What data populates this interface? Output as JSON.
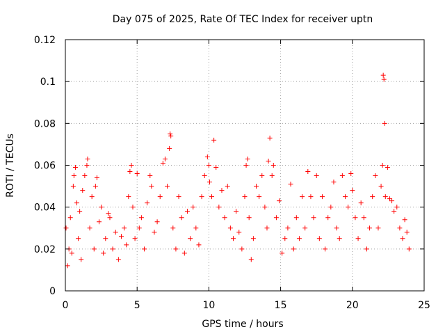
{
  "chart_data": {
    "type": "scatter",
    "title": "Day 075 of 2025, Rate Of TEC Index for receiver uptn",
    "xlabel": "GPS time / hours",
    "ylabel": "ROTI / TECUs",
    "xlim": [
      0,
      25
    ],
    "ylim": [
      0,
      0.12
    ],
    "x_ticks": [
      0,
      5,
      10,
      15,
      20,
      25
    ],
    "x_tick_labels": [
      "0",
      "5",
      "10",
      "15",
      "20",
      "25"
    ],
    "y_ticks": [
      0,
      0.02,
      0.04,
      0.06,
      0.08,
      0.1,
      0.12
    ],
    "y_tick_labels": [
      "0",
      "0.02",
      "0.04",
      "0.06",
      "0.08",
      "0.1",
      "0.12"
    ],
    "grid": true,
    "marker": "+",
    "color": "#ff0000",
    "series": [
      {
        "name": "ROTI",
        "points": [
          [
            0.05,
            0.03
          ],
          [
            0.15,
            0.012
          ],
          [
            0.25,
            0.02
          ],
          [
            0.35,
            0.035
          ],
          [
            0.45,
            0.018
          ],
          [
            0.55,
            0.05
          ],
          [
            0.6,
            0.055
          ],
          [
            0.7,
            0.059
          ],
          [
            0.8,
            0.042
          ],
          [
            0.9,
            0.025
          ],
          [
            1.0,
            0.038
          ],
          [
            1.1,
            0.015
          ],
          [
            1.2,
            0.048
          ],
          [
            1.35,
            0.055
          ],
          [
            1.5,
            0.06
          ],
          [
            1.55,
            0.063
          ],
          [
            1.7,
            0.03
          ],
          [
            1.85,
            0.045
          ],
          [
            2.0,
            0.02
          ],
          [
            2.1,
            0.05
          ],
          [
            2.2,
            0.054
          ],
          [
            2.35,
            0.033
          ],
          [
            2.5,
            0.04
          ],
          [
            2.65,
            0.018
          ],
          [
            2.8,
            0.025
          ],
          [
            3.0,
            0.037
          ],
          [
            3.1,
            0.035
          ],
          [
            3.3,
            0.02
          ],
          [
            3.5,
            0.028
          ],
          [
            3.7,
            0.015
          ],
          [
            3.9,
            0.026
          ],
          [
            4.1,
            0.03
          ],
          [
            4.25,
            0.022
          ],
          [
            4.4,
            0.045
          ],
          [
            4.5,
            0.057
          ],
          [
            4.6,
            0.06
          ],
          [
            4.7,
            0.04
          ],
          [
            4.85,
            0.025
          ],
          [
            5.0,
            0.056
          ],
          [
            5.15,
            0.03
          ],
          [
            5.3,
            0.035
          ],
          [
            5.5,
            0.02
          ],
          [
            5.7,
            0.042
          ],
          [
            5.9,
            0.055
          ],
          [
            6.0,
            0.05
          ],
          [
            6.2,
            0.028
          ],
          [
            6.4,
            0.033
          ],
          [
            6.6,
            0.045
          ],
          [
            6.8,
            0.061
          ],
          [
            6.95,
            0.063
          ],
          [
            7.1,
            0.05
          ],
          [
            7.25,
            0.068
          ],
          [
            7.3,
            0.075
          ],
          [
            7.35,
            0.074
          ],
          [
            7.5,
            0.03
          ],
          [
            7.7,
            0.02
          ],
          [
            7.9,
            0.045
          ],
          [
            8.1,
            0.035
          ],
          [
            8.3,
            0.018
          ],
          [
            8.5,
            0.038
          ],
          [
            8.7,
            0.025
          ],
          [
            8.9,
            0.04
          ],
          [
            9.1,
            0.03
          ],
          [
            9.3,
            0.022
          ],
          [
            9.5,
            0.045
          ],
          [
            9.7,
            0.055
          ],
          [
            9.9,
            0.064
          ],
          [
            10.0,
            0.06
          ],
          [
            10.05,
            0.052
          ],
          [
            10.2,
            0.045
          ],
          [
            10.35,
            0.072
          ],
          [
            10.5,
            0.059
          ],
          [
            10.7,
            0.04
          ],
          [
            10.9,
            0.048
          ],
          [
            11.1,
            0.035
          ],
          [
            11.3,
            0.05
          ],
          [
            11.5,
            0.03
          ],
          [
            11.7,
            0.025
          ],
          [
            11.9,
            0.038
          ],
          [
            12.1,
            0.028
          ],
          [
            12.3,
            0.02
          ],
          [
            12.5,
            0.045
          ],
          [
            12.6,
            0.06
          ],
          [
            12.7,
            0.063
          ],
          [
            12.8,
            0.035
          ],
          [
            12.95,
            0.015
          ],
          [
            13.1,
            0.025
          ],
          [
            13.3,
            0.05
          ],
          [
            13.5,
            0.045
          ],
          [
            13.7,
            0.055
          ],
          [
            13.9,
            0.04
          ],
          [
            14.05,
            0.03
          ],
          [
            14.15,
            0.062
          ],
          [
            14.25,
            0.073
          ],
          [
            14.4,
            0.055
          ],
          [
            14.5,
            0.06
          ],
          [
            14.7,
            0.035
          ],
          [
            14.9,
            0.043
          ],
          [
            15.1,
            0.018
          ],
          [
            15.3,
            0.025
          ],
          [
            15.5,
            0.03
          ],
          [
            15.7,
            0.051
          ],
          [
            15.9,
            0.02
          ],
          [
            16.1,
            0.035
          ],
          [
            16.3,
            0.025
          ],
          [
            16.5,
            0.045
          ],
          [
            16.7,
            0.03
          ],
          [
            16.9,
            0.057
          ],
          [
            17.1,
            0.045
          ],
          [
            17.3,
            0.035
          ],
          [
            17.5,
            0.055
          ],
          [
            17.7,
            0.025
          ],
          [
            17.9,
            0.045
          ],
          [
            18.1,
            0.02
          ],
          [
            18.3,
            0.035
          ],
          [
            18.5,
            0.04
          ],
          [
            18.7,
            0.052
          ],
          [
            18.9,
            0.03
          ],
          [
            19.1,
            0.025
          ],
          [
            19.3,
            0.055
          ],
          [
            19.5,
            0.045
          ],
          [
            19.7,
            0.04
          ],
          [
            19.9,
            0.056
          ],
          [
            20.0,
            0.048
          ],
          [
            20.2,
            0.035
          ],
          [
            20.4,
            0.025
          ],
          [
            20.6,
            0.042
          ],
          [
            20.8,
            0.035
          ],
          [
            21.0,
            0.02
          ],
          [
            21.2,
            0.03
          ],
          [
            21.4,
            0.045
          ],
          [
            21.6,
            0.055
          ],
          [
            21.8,
            0.03
          ],
          [
            22.0,
            0.05
          ],
          [
            22.1,
            0.06
          ],
          [
            22.15,
            0.103
          ],
          [
            22.2,
            0.101
          ],
          [
            22.25,
            0.08
          ],
          [
            22.3,
            0.045
          ],
          [
            22.45,
            0.059
          ],
          [
            22.6,
            0.044
          ],
          [
            22.75,
            0.043
          ],
          [
            22.9,
            0.038
          ],
          [
            23.1,
            0.04
          ],
          [
            23.3,
            0.03
          ],
          [
            23.5,
            0.025
          ],
          [
            23.65,
            0.034
          ],
          [
            23.8,
            0.028
          ],
          [
            23.95,
            0.02
          ]
        ]
      }
    ]
  }
}
